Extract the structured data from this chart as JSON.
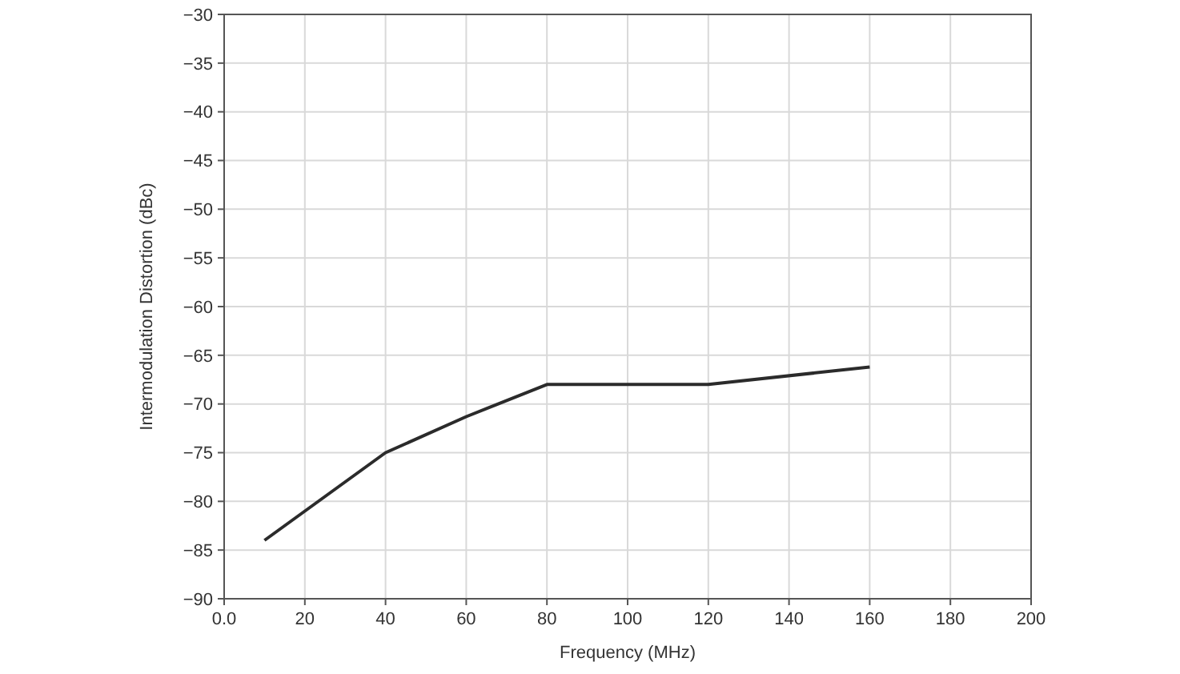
{
  "chart_data": {
    "type": "line",
    "xlabel": "Frequency (MHz)",
    "ylabel": "Intermodulation Distortion (dBc)",
    "series": [
      {
        "color": "#2b2b2b",
        "x": [
          10,
          40,
          60,
          80,
          120,
          160
        ],
        "values": [
          -84,
          -75,
          -71.3,
          -68,
          -68,
          -66.2
        ]
      }
    ],
    "xlim": [
      0,
      200
    ],
    "xticks": [
      {
        "value": 0,
        "label": "0.0"
      },
      20,
      40,
      60,
      80,
      100,
      120,
      140,
      160,
      180,
      200
    ],
    "ylim": [
      -90,
      -30
    ],
    "yticks": [
      {
        "value": -90,
        "label": "−90"
      },
      {
        "value": -85,
        "label": "−85"
      },
      {
        "value": -80,
        "label": "−80"
      },
      {
        "value": -75,
        "label": "−75"
      },
      {
        "value": -70,
        "label": "−70"
      },
      {
        "value": -65,
        "label": "−65"
      },
      {
        "value": -60,
        "label": "−60"
      },
      {
        "value": -55,
        "label": "−55"
      },
      {
        "value": -50,
        "label": "−50"
      },
      {
        "value": -45,
        "label": "−45"
      },
      {
        "value": -40,
        "label": "−40"
      },
      {
        "value": -35,
        "label": "−35"
      },
      {
        "value": -30,
        "label": "−30"
      }
    ],
    "grid": true,
    "marker": "none",
    "line_style": "solid"
  }
}
